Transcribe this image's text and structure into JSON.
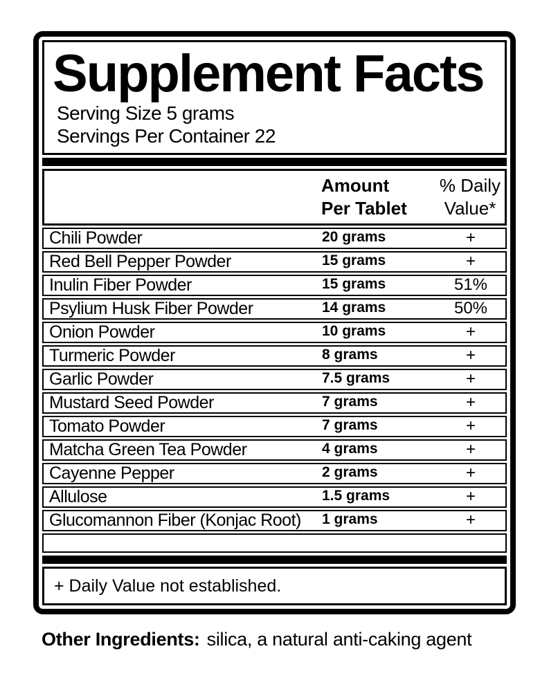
{
  "label": {
    "title": "Supplement Facts",
    "serving_size": "Serving Size 5 grams",
    "servings_per_container": "Servings Per Container 22",
    "columns": {
      "amount_line1": "Amount",
      "amount_line2": "Per Tablet",
      "dv_line1": "% Daily",
      "dv_line2": "Value*"
    },
    "rows": [
      {
        "name": "Chili Powder",
        "amount": "20 grams",
        "dv": "+"
      },
      {
        "name": "Red Bell Pepper Powder",
        "amount": "15 grams",
        "dv": "+"
      },
      {
        "name": "Inulin Fiber Powder",
        "amount": "15 grams",
        "dv": "51%"
      },
      {
        "name": "Psylium Husk Fiber Powder",
        "amount": "14 grams",
        "dv": "50%"
      },
      {
        "name": "Onion Powder",
        "amount": "10 grams",
        "dv": "+"
      },
      {
        "name": "Turmeric Powder",
        "amount": "8 grams",
        "dv": "+"
      },
      {
        "name": "Garlic Powder",
        "amount": "7.5 grams",
        "dv": "+"
      },
      {
        "name": "Mustard Seed Powder",
        "amount": "7 grams",
        "dv": "+"
      },
      {
        "name": "Tomato Powder",
        "amount": "7 grams",
        "dv": "+"
      },
      {
        "name": "Matcha Green Tea Powder",
        "amount": "4 grams",
        "dv": "+"
      },
      {
        "name": "Cayenne Pepper",
        "amount": "2 grams",
        "dv": "+"
      },
      {
        "name": "Allulose",
        "amount": "1.5 grams",
        "dv": "+"
      },
      {
        "name": "Glucomannon Fiber (Konjac Root)",
        "amount": "1 grams",
        "dv": "+"
      }
    ],
    "footnote": "+ Daily Value not established."
  },
  "other_ingredients": {
    "label": "Other Ingredients:",
    "text": "silica, a natural anti-caking agent"
  },
  "colors": {
    "ink": "#000000",
    "paper": "#ffffff"
  }
}
